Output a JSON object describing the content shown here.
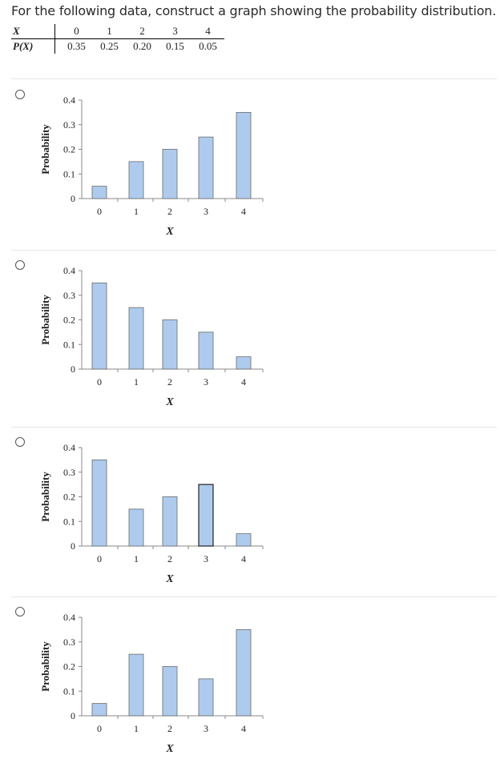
{
  "question": "For the following data, construct a graph showing the probability distribution.",
  "table": {
    "x_label": "X",
    "p_label": "P(X)",
    "x_values": [
      "0",
      "1",
      "2",
      "3",
      "4"
    ],
    "p_values": [
      "0.35",
      "0.25",
      "0.20",
      "0.15",
      "0.05"
    ]
  },
  "colors": {
    "bar_fill": "#aecbee",
    "bar_stroke": "#6a6a6a",
    "selected_bar_stroke": "#222222"
  },
  "chart_data": [
    {
      "type": "bar",
      "option": "A",
      "categories": [
        "0",
        "1",
        "2",
        "3",
        "4"
      ],
      "values": [
        0.05,
        0.15,
        0.2,
        0.25,
        0.35
      ],
      "xlabel": "X",
      "ylabel": "Probability",
      "yticks": [
        "0",
        "0.1",
        "0.2",
        "0.3",
        "0.4"
      ],
      "ylim": [
        0,
        0.4
      ]
    },
    {
      "type": "bar",
      "option": "B",
      "categories": [
        "0",
        "1",
        "2",
        "3",
        "4"
      ],
      "values": [
        0.35,
        0.25,
        0.2,
        0.15,
        0.05
      ],
      "xlabel": "X",
      "ylabel": "Probability",
      "yticks": [
        "0",
        "0.1",
        "0.2",
        "0.3",
        "0.4"
      ],
      "ylim": [
        0,
        0.4
      ]
    },
    {
      "type": "bar",
      "option": "C",
      "categories": [
        "0",
        "1",
        "2",
        "3",
        "4"
      ],
      "values": [
        0.35,
        0.15,
        0.2,
        0.25,
        0.05
      ],
      "xlabel": "X",
      "ylabel": "Probability",
      "yticks": [
        "0",
        "0.1",
        "0.2",
        "0.3",
        "0.4"
      ],
      "ylim": [
        0,
        0.4
      ]
    },
    {
      "type": "bar",
      "option": "D",
      "categories": [
        "0",
        "1",
        "2",
        "3",
        "4"
      ],
      "values": [
        0.05,
        0.25,
        0.2,
        0.15,
        0.35
      ],
      "xlabel": "X",
      "ylabel": "Probability",
      "yticks": [
        "0",
        "0.1",
        "0.2",
        "0.3",
        "0.4"
      ],
      "ylim": [
        0,
        0.4
      ]
    }
  ]
}
